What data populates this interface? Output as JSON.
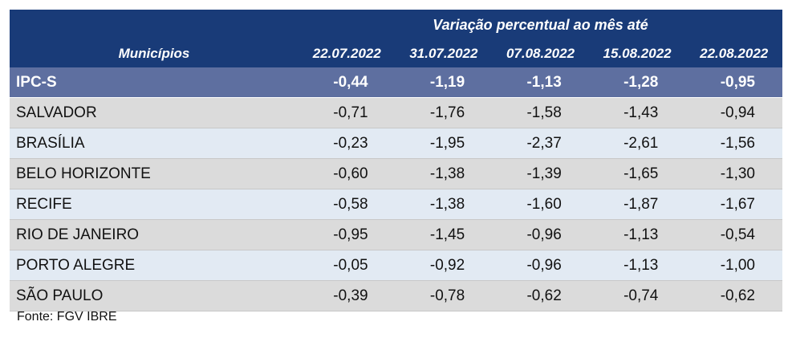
{
  "table": {
    "group_title": "Variação percentual ao mês até",
    "name_header": "Municípios",
    "dates": [
      "22.07.2022",
      "31.07.2022",
      "07.08.2022",
      "15.08.2022",
      "22.08.2022"
    ],
    "rows": [
      {
        "name": "IPC-S",
        "values": [
          "-0,44",
          "-1,19",
          "-1,13",
          "-1,28",
          "-0,95"
        ]
      },
      {
        "name": "SALVADOR",
        "values": [
          "-0,71",
          "-1,76",
          "-1,58",
          "-1,43",
          "-0,94"
        ]
      },
      {
        "name": "BRASÍLIA",
        "values": [
          "-0,23",
          "-1,95",
          "-2,37",
          "-2,61",
          "-1,56"
        ]
      },
      {
        "name": "BELO HORIZONTE",
        "values": [
          "-0,60",
          "-1,38",
          "-1,39",
          "-1,65",
          "-1,30"
        ]
      },
      {
        "name": "RECIFE",
        "values": [
          "-0,58",
          "-1,38",
          "-1,60",
          "-1,87",
          "-1,67"
        ]
      },
      {
        "name": "RIO DE JANEIRO",
        "values": [
          "-0,95",
          "-1,45",
          "-0,96",
          "-1,13",
          "-0,54"
        ]
      },
      {
        "name": "PORTO ALEGRE",
        "values": [
          "-0,05",
          "-0,92",
          "-0,96",
          "-1,13",
          "-1,00"
        ]
      },
      {
        "name": "SÃO PAULO",
        "values": [
          "-0,39",
          "-0,78",
          "-0,62",
          "-0,74",
          "-0,62"
        ]
      }
    ]
  },
  "source": "Fonte: FGV IBRE",
  "colors": {
    "header_bg": "#193b78",
    "ipcs_row_bg": "#5e6fa0",
    "row_gray": "#dbdbdb",
    "row_blue": "#e2eaf3"
  }
}
